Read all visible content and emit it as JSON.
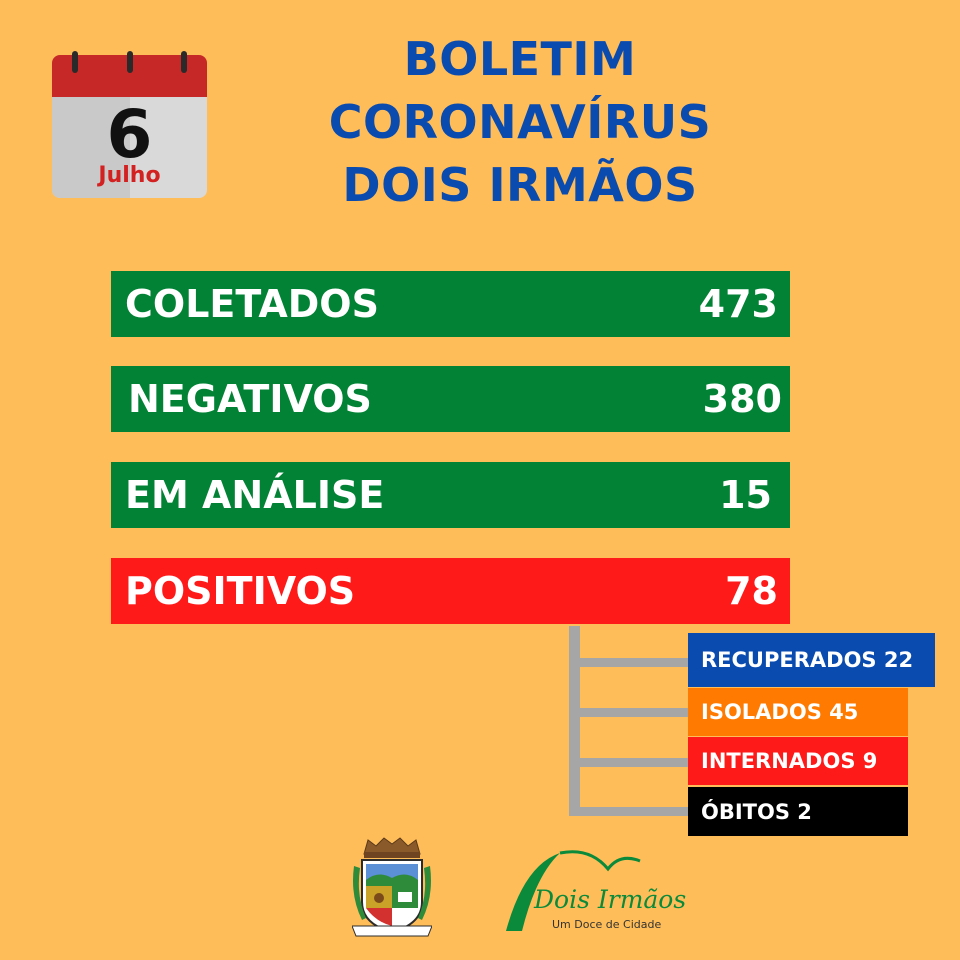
{
  "calendar": {
    "day": "6",
    "month": "Julho"
  },
  "title": {
    "line1": "BOLETIM",
    "line2": "CORONAVÍRUS",
    "line3": "DOIS IRMÃOS"
  },
  "stats": [
    {
      "label": "COLETADOS",
      "value": "473",
      "color": "#028235"
    },
    {
      "label": "NEGATIVOS",
      "value": "380",
      "color": "#028235"
    },
    {
      "label": "EM ANÁLISE",
      "value": "15",
      "color": "#028235"
    },
    {
      "label": "POSITIVOS",
      "value": "78",
      "color": "#FF1A1A"
    }
  ],
  "positivos_breakdown": [
    {
      "text": "RECUPERADOS 22",
      "color": "#0A4BB0"
    },
    {
      "text": "ISOLADOS  45",
      "color": "#FF7A00"
    },
    {
      "text": "INTERNADOS 9",
      "color": "#FF1A1A"
    },
    {
      "text": "ÓBITOS 2",
      "color": "#000000"
    }
  ],
  "logos": {
    "crest_icon": "municipal-coat-of-arms-icon",
    "brand_script": "Dois Irmãos",
    "brand_tagline": "Um Doce de Cidade"
  }
}
